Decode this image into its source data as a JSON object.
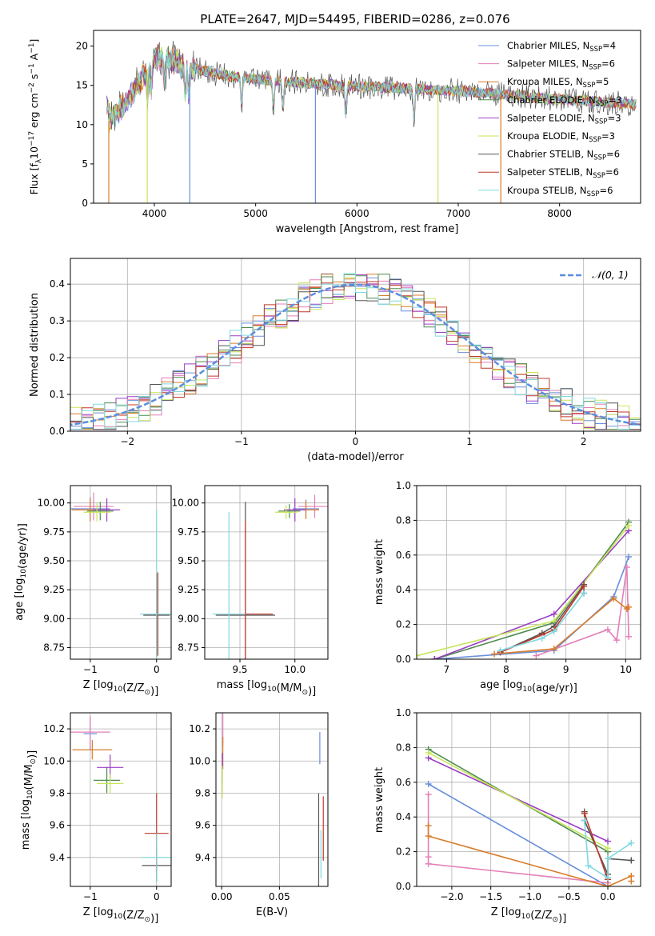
{
  "figure": {
    "title": "PLATE=2647, MJD=54495, FIBERID=0286, z=0.076"
  },
  "palette": {
    "Chabrier MILES": "#6a8fdc",
    "Salpeter MILES": "#e37fb7",
    "Kroupa MILES": "#d97c2a",
    "Chabrier ELODIE": "#4f8a4f",
    "Salpeter ELODIE": "#9b3fc2",
    "Kroupa ELODIE": "#c7e65a",
    "Chabrier STELIB": "#555555",
    "Salpeter STELIB": "#c0392b",
    "Kroupa STELIB": "#7fd9e0"
  },
  "chart_data": [
    {
      "id": "spectrum",
      "type": "line",
      "title": "PLATE=2647, MJD=54495, FIBERID=0286, z=0.076",
      "xlabel": "wavelength [Angstrom, rest frame]",
      "ylabel": "Flux [f_λ 10^-17 erg cm^-2 s^-1 A^-1]",
      "xlim": [
        3400,
        8800
      ],
      "ylim": [
        0,
        22
      ],
      "xticks": [
        4000,
        5000,
        6000,
        7000,
        8000
      ],
      "yticks": [
        0,
        5,
        10,
        15,
        20
      ],
      "grid": false,
      "legend_position": "top-right",
      "legend": [
        {
          "base": "Chabrier MILES, N",
          "sub": "SSP",
          "tail": "=4"
        },
        {
          "base": "Salpeter MILES, N",
          "sub": "SSP",
          "tail": "=6"
        },
        {
          "base": "Kroupa MILES, N",
          "sub": "SSP",
          "tail": "=5"
        },
        {
          "base": "Chabrier ELODIE, N",
          "sub": "SSP",
          "tail": "=3"
        },
        {
          "base": "Salpeter ELODIE, N",
          "sub": "SSP",
          "tail": "=3"
        },
        {
          "base": "Kroupa ELODIE, N",
          "sub": "SSP",
          "tail": "=3"
        },
        {
          "base": "Chabrier STELIB, N",
          "sub": "SSP",
          "tail": "=6"
        },
        {
          "base": "Salpeter STELIB, N",
          "sub": "SSP",
          "tail": "=6"
        },
        {
          "base": "Kroupa STELIB, N",
          "sub": "SSP",
          "tail": "=6"
        }
      ],
      "data_trace": {
        "x_start": 3530,
        "x_end": 8760,
        "step": 8
      },
      "model_envelope": {
        "x": [
          3550,
          3700,
          3850,
          4000,
          4100,
          4300,
          4600,
          5000,
          5500,
          6000,
          6500,
          7000,
          7500,
          8000,
          8500,
          8760
        ],
        "y": [
          10.5,
          12.5,
          15.5,
          18.5,
          18.5,
          17.5,
          16.5,
          15.8,
          15.3,
          14.9,
          14.6,
          14.3,
          13.8,
          13.2,
          12.8,
          12.6
        ]
      },
      "dropouts": [
        3550,
        3930,
        4350,
        5590,
        6800,
        7420
      ]
    },
    {
      "id": "residuals",
      "type": "histogram",
      "xlabel": "(data-model)/error",
      "ylabel": "Normed distribution",
      "xlim": [
        -2.5,
        2.5
      ],
      "ylim": [
        0,
        0.47
      ],
      "xticks": [
        -2,
        -1,
        0,
        1,
        2
      ],
      "yticks": [
        0.0,
        0.1,
        0.2,
        0.3,
        0.4
      ],
      "grid": true,
      "legend_position": "top-right",
      "legend_label": "𝒩(0, 1)",
      "bin_width": 0.1,
      "gaussian": {
        "mean": 0,
        "sigma": 1
      }
    },
    {
      "id": "age-vs-Z",
      "type": "errorbar",
      "xlabel": "Z [log10(Z/Z⊙)]",
      "ylabel": "age  [log10(age/yr)]",
      "xlim": [
        -1.3,
        0.22
      ],
      "ylim": [
        8.65,
        10.15
      ],
      "xticks": [
        -1,
        0
      ],
      "yticks": [
        8.75,
        9.0,
        9.25,
        9.5,
        9.75,
        10.0
      ],
      "grid": true,
      "points": [
        {
          "model": "Chabrier MILES",
          "x": -1.0,
          "xerr": 0.3,
          "y": 9.95,
          "yerr": 0.1
        },
        {
          "model": "Salpeter MILES",
          "x": -0.95,
          "xerr": 0.3,
          "y": 9.97,
          "yerr": 0.12
        },
        {
          "model": "Kroupa MILES",
          "x": -1.0,
          "xerr": 0.28,
          "y": 9.94,
          "yerr": 0.1
        },
        {
          "model": "Chabrier ELODIE",
          "x": -0.85,
          "xerr": 0.2,
          "y": 9.93,
          "yerr": 0.08
        },
        {
          "model": "Salpeter ELODIE",
          "x": -0.75,
          "xerr": 0.2,
          "y": 9.94,
          "yerr": 0.1
        },
        {
          "model": "Kroupa ELODIE",
          "x": -0.9,
          "xerr": 0.2,
          "y": 9.92,
          "yerr": 0.08
        },
        {
          "model": "Chabrier STELIB",
          "x": 0.0,
          "xerr": 0.2,
          "y": 9.03,
          "yerr": 0.36
        },
        {
          "model": "Salpeter STELIB",
          "x": 0.02,
          "xerr": 0.2,
          "y": 9.04,
          "yerr": 0.36
        },
        {
          "model": "Kroupa STELIB",
          "x": 0.0,
          "xerr": 0.25,
          "y": 9.04,
          "yerr": 0.9
        }
      ]
    },
    {
      "id": "age-vs-mass",
      "type": "errorbar",
      "xlabel": "mass [log10(M/M⊙)]",
      "ylabel": "",
      "xlim": [
        9.18,
        10.3
      ],
      "ylim": [
        8.65,
        10.15
      ],
      "xticks": [
        9.5,
        10.0
      ],
      "yticks": [
        8.75,
        9.0,
        9.25,
        9.5,
        9.75,
        10.0
      ],
      "grid": true,
      "points": [
        {
          "model": "Chabrier MILES",
          "x": 10.1,
          "xerr": 0.12,
          "y": 9.95,
          "yerr": 0.08
        },
        {
          "model": "Salpeter MILES",
          "x": 10.18,
          "xerr": 0.15,
          "y": 9.97,
          "yerr": 0.1
        },
        {
          "model": "Kroupa MILES",
          "x": 10.1,
          "xerr": 0.12,
          "y": 9.94,
          "yerr": 0.08
        },
        {
          "model": "Chabrier ELODIE",
          "x": 9.95,
          "xerr": 0.1,
          "y": 9.93,
          "yerr": 0.06
        },
        {
          "model": "Salpeter ELODIE",
          "x": 10.0,
          "xerr": 0.1,
          "y": 9.94,
          "yerr": 0.1
        },
        {
          "model": "Kroupa ELODIE",
          "x": 9.92,
          "xerr": 0.1,
          "y": 9.92,
          "yerr": 0.06
        },
        {
          "model": "Chabrier STELIB",
          "x": 9.55,
          "xerr": 0.27,
          "y": 9.03,
          "yerr": 0.98
        },
        {
          "model": "Salpeter STELIB",
          "x": 9.55,
          "xerr": 0.25,
          "y": 9.04,
          "yerr": 0.8
        },
        {
          "model": "Kroupa STELIB",
          "x": 9.4,
          "xerr": 0.15,
          "y": 9.04,
          "yerr": 0.88
        }
      ]
    },
    {
      "id": "weight-vs-age",
      "type": "line",
      "xlabel": "age  [log10(age/yr)]",
      "ylabel": "mass weight",
      "xlim": [
        6.5,
        10.25
      ],
      "ylim": [
        0,
        1.0
      ],
      "xticks": [
        7,
        8,
        9,
        10
      ],
      "yticks": [
        0.0,
        0.2,
        0.4,
        0.6,
        0.8,
        1.0
      ],
      "grid": true,
      "series": [
        {
          "model": "Chabrier MILES",
          "x": [
            6.8,
            8.8,
            9.8,
            10.05
          ],
          "y": [
            0.0,
            0.05,
            0.36,
            0.59
          ]
        },
        {
          "model": "Salpeter MILES",
          "x": [
            8.5,
            9.7,
            9.85,
            10.02,
            10.05
          ],
          "y": [
            0.02,
            0.17,
            0.11,
            0.53,
            0.13
          ]
        },
        {
          "model": "Kroupa MILES",
          "x": [
            7.8,
            8.8,
            9.8,
            10.02,
            10.05
          ],
          "y": [
            0.03,
            0.06,
            0.35,
            0.29,
            0.3
          ]
        },
        {
          "model": "Chabrier ELODIE",
          "x": [
            6.8,
            8.8,
            10.05
          ],
          "y": [
            0.0,
            0.21,
            0.79
          ]
        },
        {
          "model": "Salpeter ELODIE",
          "x": [
            6.8,
            8.8,
            10.05
          ],
          "y": [
            0.0,
            0.26,
            0.74
          ]
        },
        {
          "model": "Kroupa ELODIE",
          "x": [
            6.5,
            8.8,
            10.05
          ],
          "y": [
            0.02,
            0.22,
            0.77
          ]
        },
        {
          "model": "Chabrier STELIB",
          "x": [
            7.9,
            8.6,
            8.8,
            9.3,
            9.3
          ],
          "y": [
            0.04,
            0.15,
            0.19,
            0.43,
            0.38
          ]
        },
        {
          "model": "Salpeter STELIB",
          "x": [
            7.9,
            8.6,
            8.8,
            9.3
          ],
          "y": [
            0.04,
            0.14,
            0.17,
            0.42
          ]
        },
        {
          "model": "Kroupa STELIB",
          "x": [
            7.9,
            8.6,
            8.8,
            9.3
          ],
          "y": [
            0.05,
            0.12,
            0.16,
            0.38
          ]
        }
      ]
    },
    {
      "id": "mass-vs-Z",
      "type": "errorbar",
      "xlabel": "Z [log10(Z/Z⊙)]",
      "ylabel": "mass [log10(M/M⊙)]",
      "xlim": [
        -1.3,
        0.22
      ],
      "ylim": [
        9.22,
        10.3
      ],
      "xticks": [
        -1,
        0
      ],
      "yticks": [
        9.4,
        9.6,
        9.8,
        10.0,
        10.2
      ],
      "grid": true,
      "points": [
        {
          "model": "Chabrier MILES",
          "x": -1.0,
          "xerr": 0.1,
          "y": 10.17,
          "yerr": 0.1
        },
        {
          "model": "Salpeter MILES",
          "x": -1.0,
          "xerr": 0.3,
          "y": 10.18,
          "yerr": 0.1
        },
        {
          "model": "Kroupa MILES",
          "x": -0.97,
          "xerr": 0.3,
          "y": 10.07,
          "yerr": 0.06
        },
        {
          "model": "Chabrier ELODIE",
          "x": -0.75,
          "xerr": 0.2,
          "y": 9.88,
          "yerr": 0.08
        },
        {
          "model": "Salpeter ELODIE",
          "x": -0.7,
          "xerr": 0.2,
          "y": 9.96,
          "yerr": 0.08
        },
        {
          "model": "Kroupa ELODIE",
          "x": -0.7,
          "xerr": 0.2,
          "y": 9.86,
          "yerr": 0.06
        },
        {
          "model": "Chabrier STELIB",
          "x": 0.0,
          "xerr": 0.22,
          "y": 9.35,
          "yerr": 0.1
        },
        {
          "model": "Salpeter STELIB",
          "x": 0.0,
          "xerr": 0.18,
          "y": 9.55,
          "yerr": 0.25
        },
        {
          "model": "Kroupa STELIB",
          "x": 0.0,
          "xerr": 0.22,
          "y": 9.4,
          "yerr": 0.15
        }
      ]
    },
    {
      "id": "mass-vs-ebv",
      "type": "errorbar",
      "xlabel": "E(B-V)",
      "ylabel": "",
      "xlim": [
        -0.005,
        0.092
      ],
      "ylim": [
        9.22,
        10.3
      ],
      "xticks": [
        0.0,
        0.05
      ],
      "yticks": [
        9.4,
        9.6,
        9.8,
        10.0,
        10.2
      ],
      "grid": true,
      "points": [
        {
          "model": "Chabrier MILES",
          "x": 0.085,
          "y": 10.08,
          "yerr": 0.1
        },
        {
          "model": "Salpeter MILES",
          "x": 0.001,
          "y": 10.2,
          "yerr": 0.1
        },
        {
          "model": "Kroupa MILES",
          "x": 0.001,
          "y": 10.05,
          "yerr": 0.1
        },
        {
          "model": "Chabrier ELODIE",
          "x": 0.0005,
          "y": 9.9,
          "yerr": 0.05
        },
        {
          "model": "Salpeter ELODIE",
          "x": 0.0007,
          "y": 10.0,
          "yerr": 0.05
        },
        {
          "model": "Kroupa ELODIE",
          "x": 0.0005,
          "y": 9.87,
          "yerr": 0.1
        },
        {
          "model": "Chabrier STELIB",
          "x": 0.084,
          "y": 9.5,
          "yerr": 0.3
        },
        {
          "model": "Salpeter STELIB",
          "x": 0.088,
          "y": 9.58,
          "yerr": 0.2
        },
        {
          "model": "Kroupa STELIB",
          "x": 0.086,
          "y": 9.42,
          "yerr": 0.15
        }
      ]
    },
    {
      "id": "weight-vs-Z",
      "type": "line",
      "xlabel": "Z [log10(Z/Z⊙)]",
      "ylabel": "mass weight",
      "xlim": [
        -2.45,
        0.42
      ],
      "ylim": [
        0,
        1.0
      ],
      "xticks": [
        -2.0,
        -1.5,
        -1.0,
        -0.5,
        0.0
      ],
      "yticks": [
        0.0,
        0.2,
        0.4,
        0.6,
        0.8,
        1.0
      ],
      "grid": true,
      "series": [
        {
          "model": "Chabrier MILES",
          "x": [
            -2.3,
            0.0
          ],
          "y": [
            0.59,
            0.0
          ]
        },
        {
          "model": "Salpeter MILES",
          "x": [
            -2.3,
            -2.3,
            -2.3,
            0.0
          ],
          "y": [
            0.53,
            0.17,
            0.13,
            0.02
          ]
        },
        {
          "model": "Kroupa MILES",
          "x": [
            -2.3,
            -2.3,
            0.0,
            0.3,
            0.3
          ],
          "y": [
            0.35,
            0.29,
            0.0,
            0.06,
            0.03
          ]
        },
        {
          "model": "Chabrier ELODIE",
          "x": [
            -2.3,
            0.0
          ],
          "y": [
            0.79,
            0.2
          ]
        },
        {
          "model": "Salpeter ELODIE",
          "x": [
            -2.3,
            0.0
          ],
          "y": [
            0.74,
            0.26
          ]
        },
        {
          "model": "Kroupa ELODIE",
          "x": [
            -2.3,
            0.0
          ],
          "y": [
            0.77,
            0.22
          ]
        },
        {
          "model": "Chabrier STELIB",
          "x": [
            -0.3,
            -0.3,
            0.0,
            0.0,
            0.3
          ],
          "y": [
            0.43,
            0.38,
            0.07,
            0.16,
            0.15
          ]
        },
        {
          "model": "Salpeter STELIB",
          "x": [
            -0.3,
            0.0
          ],
          "y": [
            0.42,
            0.04
          ]
        },
        {
          "model": "Kroupa STELIB",
          "x": [
            -0.3,
            -0.25,
            0.0,
            0.0,
            0.3
          ],
          "y": [
            0.38,
            0.12,
            0.05,
            0.16,
            0.25
          ]
        }
      ]
    }
  ]
}
